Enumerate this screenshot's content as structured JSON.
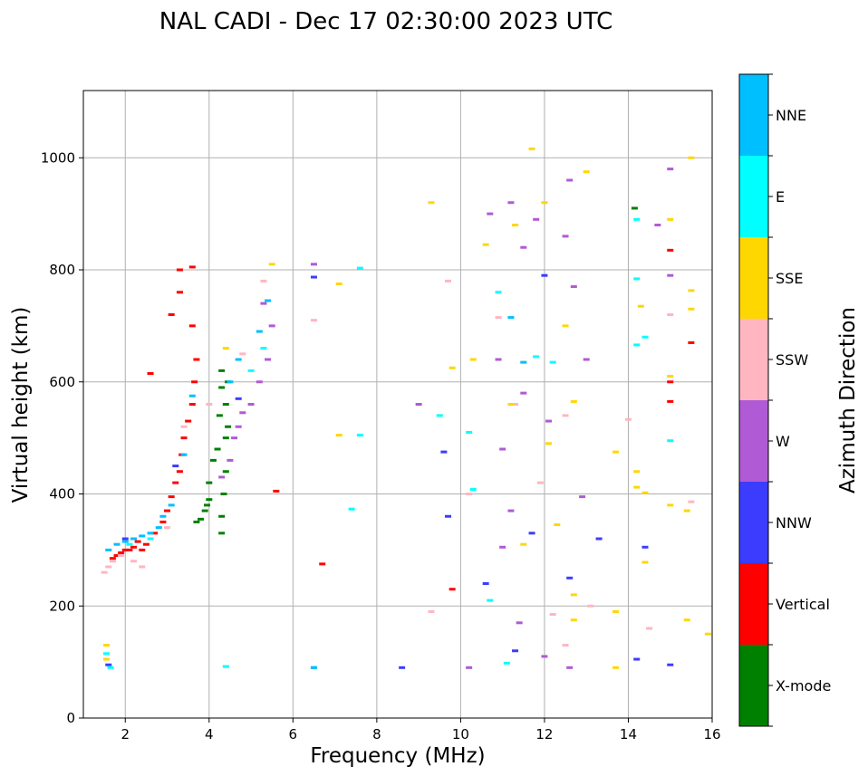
{
  "chart_data": {
    "type": "scatter",
    "title": "NAL CADI - Dec 17 02:30:00 2023 UTC",
    "xlabel": "Frequency (MHz)",
    "ylabel": "Virtual height (km)",
    "xlim": [
      1.0,
      16.0
    ],
    "ylim": [
      0,
      1120
    ],
    "xticks": [
      2,
      4,
      6,
      8,
      10,
      12,
      14,
      16
    ],
    "yticks": [
      0,
      200,
      400,
      600,
      800,
      1000
    ],
    "grid": true,
    "colorbar": {
      "label": "Azimuth Direction",
      "categories": [
        {
          "name": "X-mode",
          "color": "#008000"
        },
        {
          "name": "Vertical",
          "color": "#ff0000"
        },
        {
          "name": "NNW",
          "color": "#3c3cff"
        },
        {
          "name": "W",
          "color": "#b05ad6"
        },
        {
          "name": "SSW",
          "color": "#ffb6c1"
        },
        {
          "name": "SSE",
          "color": "#ffd700"
        },
        {
          "name": "E",
          "color": "#00ffff"
        },
        {
          "name": "NNE",
          "color": "#00bfff"
        }
      ]
    },
    "series": [
      {
        "name": "X-mode",
        "points": [
          [
            4.3,
            330
          ],
          [
            4.3,
            360
          ],
          [
            4.35,
            400
          ],
          [
            4.4,
            440
          ],
          [
            4.4,
            500
          ],
          [
            4.45,
            520
          ],
          [
            4.4,
            560
          ],
          [
            4.45,
            600
          ],
          [
            4.3,
            620
          ],
          [
            4.3,
            590
          ],
          [
            4.25,
            540
          ],
          [
            4.2,
            480
          ],
          [
            4.1,
            460
          ],
          [
            4.0,
            420
          ],
          [
            4.0,
            390
          ],
          [
            3.95,
            380
          ],
          [
            3.9,
            370
          ],
          [
            3.8,
            355
          ],
          [
            3.7,
            350
          ],
          [
            14.15,
            910
          ]
        ]
      },
      {
        "name": "Vertical",
        "points": [
          [
            1.7,
            285
          ],
          [
            1.8,
            290
          ],
          [
            1.9,
            295
          ],
          [
            2.0,
            300
          ],
          [
            2.1,
            300
          ],
          [
            2.2,
            305
          ],
          [
            2.3,
            315
          ],
          [
            2.4,
            300
          ],
          [
            2.5,
            310
          ],
          [
            2.7,
            330
          ],
          [
            2.9,
            350
          ],
          [
            3.0,
            370
          ],
          [
            3.1,
            395
          ],
          [
            3.2,
            420
          ],
          [
            3.3,
            440
          ],
          [
            3.35,
            470
          ],
          [
            3.4,
            500
          ],
          [
            3.5,
            530
          ],
          [
            3.6,
            560
          ],
          [
            3.65,
            600
          ],
          [
            3.7,
            640
          ],
          [
            3.6,
            700
          ],
          [
            3.3,
            760
          ],
          [
            3.3,
            800
          ],
          [
            3.6,
            805
          ],
          [
            3.1,
            720
          ],
          [
            2.6,
            615
          ],
          [
            5.6,
            405
          ],
          [
            6.7,
            275
          ],
          [
            9.8,
            230
          ],
          [
            15.0,
            565
          ],
          [
            15.0,
            600
          ],
          [
            15.0,
            835
          ],
          [
            15.5,
            670
          ]
        ]
      },
      {
        "name": "NNW",
        "points": [
          [
            1.6,
            95
          ],
          [
            2.0,
            320
          ],
          [
            3.2,
            450
          ],
          [
            4.7,
            570
          ],
          [
            6.5,
            787
          ],
          [
            6.5,
            90
          ],
          [
            8.6,
            90
          ],
          [
            9.6,
            475
          ],
          [
            9.7,
            360
          ],
          [
            10.6,
            240
          ],
          [
            11.3,
            120
          ],
          [
            11.7,
            330
          ],
          [
            12.6,
            250
          ],
          [
            12.0,
            790
          ],
          [
            13.3,
            320
          ],
          [
            14.2,
            105
          ],
          [
            14.4,
            305
          ],
          [
            15.0,
            95
          ]
        ]
      },
      {
        "name": "W",
        "points": [
          [
            4.3,
            430
          ],
          [
            4.5,
            460
          ],
          [
            4.6,
            500
          ],
          [
            4.7,
            520
          ],
          [
            4.8,
            545
          ],
          [
            5.0,
            560
          ],
          [
            5.2,
            600
          ],
          [
            5.4,
            640
          ],
          [
            5.5,
            700
          ],
          [
            5.3,
            740
          ],
          [
            6.5,
            810
          ],
          [
            9.0,
            560
          ],
          [
            10.2,
            90
          ],
          [
            10.7,
            900
          ],
          [
            10.9,
            640
          ],
          [
            11.2,
            920
          ],
          [
            11.5,
            840
          ],
          [
            11.8,
            890
          ],
          [
            12.6,
            960
          ],
          [
            12.5,
            860
          ],
          [
            12.7,
            770
          ],
          [
            13.0,
            640
          ],
          [
            12.1,
            530
          ],
          [
            11.5,
            580
          ],
          [
            11.0,
            480
          ],
          [
            11.2,
            370
          ],
          [
            11.4,
            170
          ],
          [
            12.0,
            110
          ],
          [
            12.6,
            90
          ],
          [
            12.9,
            395
          ],
          [
            11.0,
            305
          ],
          [
            15.0,
            980
          ],
          [
            15.0,
            790
          ],
          [
            14.7,
            880
          ]
        ]
      },
      {
        "name": "SSW",
        "points": [
          [
            1.5,
            260
          ],
          [
            1.6,
            270
          ],
          [
            1.7,
            280
          ],
          [
            1.9,
            290
          ],
          [
            2.2,
            280
          ],
          [
            2.4,
            270
          ],
          [
            3.0,
            340
          ],
          [
            3.4,
            520
          ],
          [
            4.0,
            560
          ],
          [
            4.8,
            650
          ],
          [
            5.3,
            780
          ],
          [
            6.5,
            710
          ],
          [
            9.3,
            190
          ],
          [
            9.7,
            780
          ],
          [
            10.2,
            400
          ],
          [
            10.9,
            715
          ],
          [
            11.3,
            560
          ],
          [
            11.9,
            420
          ],
          [
            12.5,
            540
          ],
          [
            12.5,
            130
          ],
          [
            13.1,
            200
          ],
          [
            14.0,
            533
          ],
          [
            14.5,
            160
          ],
          [
            15.0,
            720
          ],
          [
            15.5,
            386
          ],
          [
            12.2,
            185
          ]
        ]
      },
      {
        "name": "SSE",
        "points": [
          [
            1.55,
            105
          ],
          [
            1.55,
            130
          ],
          [
            4.4,
            660
          ],
          [
            5.5,
            810
          ],
          [
            7.1,
            775
          ],
          [
            7.1,
            505
          ],
          [
            9.3,
            920
          ],
          [
            9.8,
            625
          ],
          [
            10.3,
            640
          ],
          [
            10.6,
            845
          ],
          [
            11.3,
            880
          ],
          [
            11.5,
            310
          ],
          [
            11.2,
            560
          ],
          [
            12.0,
            920
          ],
          [
            12.1,
            490
          ],
          [
            12.3,
            345
          ],
          [
            12.5,
            700
          ],
          [
            12.7,
            565
          ],
          [
            12.7,
            220
          ],
          [
            12.7,
            175
          ],
          [
            13.0,
            975
          ],
          [
            13.7,
            475
          ],
          [
            13.7,
            190
          ],
          [
            13.7,
            90
          ],
          [
            14.2,
            440
          ],
          [
            14.2,
            412
          ],
          [
            14.3,
            735
          ],
          [
            14.4,
            402
          ],
          [
            14.4,
            278
          ],
          [
            15.0,
            890
          ],
          [
            15.0,
            610
          ],
          [
            15.0,
            380
          ],
          [
            15.4,
            370
          ],
          [
            15.4,
            175
          ],
          [
            15.5,
            1000
          ],
          [
            15.5,
            763
          ],
          [
            15.5,
            730
          ],
          [
            15.9,
            150
          ],
          [
            11.7,
            1016
          ]
        ]
      },
      {
        "name": "E",
        "points": [
          [
            1.55,
            115
          ],
          [
            1.65,
            90
          ],
          [
            2.1,
            310
          ],
          [
            2.6,
            320
          ],
          [
            4.4,
            92
          ],
          [
            5.0,
            620
          ],
          [
            5.3,
            660
          ],
          [
            6.5,
            90
          ],
          [
            7.6,
            803
          ],
          [
            7.6,
            505
          ],
          [
            9.5,
            540
          ],
          [
            10.2,
            510
          ],
          [
            10.3,
            408
          ],
          [
            10.7,
            210
          ],
          [
            10.9,
            760
          ],
          [
            11.1,
            98
          ],
          [
            11.8,
            645
          ],
          [
            12.2,
            635
          ],
          [
            14.2,
            890
          ],
          [
            14.2,
            784
          ],
          [
            14.2,
            666
          ],
          [
            14.4,
            680
          ],
          [
            15.0,
            495
          ],
          [
            7.4,
            373
          ]
        ]
      },
      {
        "name": "NNE",
        "points": [
          [
            1.6,
            300
          ],
          [
            1.8,
            310
          ],
          [
            2.0,
            315
          ],
          [
            2.2,
            320
          ],
          [
            2.4,
            325
          ],
          [
            2.6,
            330
          ],
          [
            2.8,
            340
          ],
          [
            2.9,
            360
          ],
          [
            3.1,
            380
          ],
          [
            3.4,
            470
          ],
          [
            3.6,
            575
          ],
          [
            4.5,
            600
          ],
          [
            4.7,
            640
          ],
          [
            5.2,
            690
          ],
          [
            5.4,
            745
          ],
          [
            6.5,
            90
          ],
          [
            11.2,
            715
          ],
          [
            11.5,
            635
          ]
        ]
      }
    ]
  }
}
